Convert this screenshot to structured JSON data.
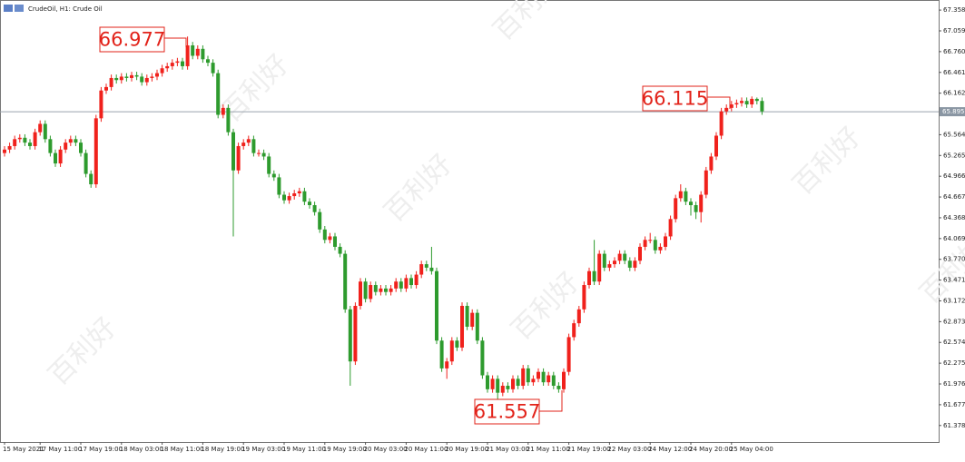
{
  "chart_data": {
    "type": "candlestick",
    "title": "CrudeOil, H1:  Crude Oil",
    "watermark": "百利好",
    "categories": [
      "15 May 2021",
      null,
      null,
      null,
      null,
      null,
      null,
      "17 May 11:00",
      null,
      null,
      null,
      null,
      null,
      null,
      null,
      "17 May 19:00",
      null,
      null,
      null,
      null,
      null,
      null,
      null,
      "18 May 03:00",
      null,
      null,
      null,
      null,
      null,
      null,
      null,
      "18 May 11:00",
      null,
      null,
      null,
      null,
      null,
      null,
      null,
      "18 May 19:00",
      null,
      null,
      null,
      null,
      null,
      null,
      null,
      "19 May 03:00",
      null,
      null,
      null,
      null,
      null,
      null,
      null,
      "19 May 11:00",
      null,
      null,
      null,
      null,
      null,
      null,
      null,
      "19 May 19:00",
      null,
      null,
      null,
      null,
      null,
      null,
      null,
      "20 May 03:00",
      null,
      null,
      null,
      null,
      null,
      null,
      null,
      "20 May 11:00",
      null,
      null,
      null,
      null,
      null,
      null,
      null,
      "20 May 19:00",
      null,
      null,
      null,
      null,
      null,
      null,
      null,
      "21 May 03:00",
      null,
      null,
      null,
      null,
      null,
      null,
      null,
      "21 May 11:00",
      null,
      null,
      null,
      null,
      null,
      null,
      null,
      "21 May 19:00",
      null,
      null,
      null,
      null,
      null,
      null,
      null,
      "22 May 03:00",
      null,
      null,
      null,
      null,
      null,
      null,
      null,
      "24 May 12:00",
      null,
      null,
      null,
      null,
      null,
      null,
      null,
      "24 May 20:00",
      null,
      null,
      null,
      null,
      null,
      null,
      null,
      "25 May 04:00",
      null,
      null,
      null,
      null,
      null,
      null
    ],
    "open": [
      65.3,
      65.35,
      65.4,
      65.5,
      65.52,
      65.45,
      65.4,
      65.6,
      65.72,
      65.5,
      65.3,
      65.15,
      65.35,
      65.45,
      65.5,
      65.45,
      65.3,
      65.0,
      64.85,
      65.8,
      66.2,
      66.25,
      66.38,
      66.35,
      66.4,
      66.38,
      66.42,
      66.4,
      66.32,
      66.38,
      66.4,
      66.45,
      66.52,
      66.55,
      66.6,
      66.62,
      66.55,
      66.85,
      66.7,
      66.8,
      66.65,
      66.6,
      66.45,
      65.85,
      65.95,
      65.6,
      65.05,
      65.4,
      65.45,
      65.5,
      65.3,
      65.3,
      65.25,
      65.0,
      64.95,
      64.7,
      64.62,
      64.68,
      64.72,
      64.75,
      64.6,
      64.55,
      64.45,
      64.2,
      64.05,
      64.1,
      63.95,
      63.85,
      63.05,
      62.3,
      63.1,
      63.45,
      63.2,
      63.4,
      63.3,
      63.35,
      63.3,
      63.35,
      63.45,
      63.35,
      63.5,
      63.4,
      63.55,
      63.7,
      63.65,
      63.6,
      62.6,
      62.2,
      62.3,
      62.6,
      62.5,
      63.1,
      62.8,
      63.0,
      62.6,
      62.1,
      61.9,
      62.05,
      61.85,
      61.95,
      61.9,
      62.05,
      61.95,
      62.2,
      62.0,
      62.05,
      62.15,
      62.0,
      62.1,
      61.95,
      61.9,
      62.15,
      62.65,
      62.85,
      63.05,
      63.4,
      63.6,
      63.45,
      63.85,
      63.65,
      63.7,
      63.75,
      63.85,
      63.75,
      63.65,
      63.75,
      63.95,
      64.05,
      64.05,
      63.9,
      63.95,
      64.1,
      64.35,
      64.65,
      64.75,
      64.6,
      64.55,
      64.45,
      64.7,
      65.05,
      65.25,
      65.55,
      65.9,
      65.95,
      66.0,
      66.02,
      66.05,
      66.0,
      66.08,
      66.05
    ],
    "high": [
      65.4,
      65.45,
      65.55,
      65.57,
      65.57,
      65.5,
      65.65,
      65.77,
      65.77,
      65.55,
      65.35,
      65.4,
      65.5,
      65.55,
      65.55,
      65.5,
      65.35,
      65.05,
      65.85,
      66.25,
      66.3,
      66.43,
      66.43,
      66.45,
      66.45,
      66.47,
      66.47,
      66.45,
      66.43,
      66.45,
      66.5,
      66.57,
      66.6,
      66.65,
      66.67,
      66.67,
      66.977,
      66.9,
      66.85,
      66.85,
      66.7,
      66.65,
      66.5,
      66.0,
      66.0,
      65.65,
      65.45,
      65.5,
      65.55,
      65.55,
      65.35,
      65.35,
      65.3,
      65.05,
      65.0,
      64.75,
      64.73,
      64.77,
      64.8,
      64.8,
      64.65,
      64.6,
      64.5,
      64.25,
      64.15,
      64.15,
      64.0,
      63.9,
      63.1,
      63.15,
      63.5,
      63.5,
      63.45,
      63.45,
      63.4,
      63.4,
      63.4,
      63.5,
      63.5,
      63.55,
      63.55,
      63.6,
      63.75,
      63.75,
      63.95,
      63.65,
      62.65,
      62.35,
      62.65,
      62.65,
      63.15,
      63.15,
      63.05,
      63.05,
      62.65,
      62.15,
      62.1,
      62.1,
      62.0,
      62.0,
      62.1,
      62.1,
      62.25,
      62.25,
      62.1,
      62.2,
      62.2,
      62.15,
      62.15,
      62.0,
      62.2,
      62.7,
      62.9,
      63.1,
      63.45,
      63.65,
      64.05,
      63.9,
      63.9,
      63.75,
      63.8,
      63.9,
      63.9,
      63.8,
      63.8,
      64.0,
      64.1,
      64.15,
      64.1,
      64.0,
      64.15,
      64.4,
      64.7,
      64.85,
      64.8,
      64.65,
      64.6,
      64.75,
      65.1,
      65.3,
      65.6,
      65.95,
      66.0,
      66.05,
      66.07,
      66.1,
      66.1,
      66.115,
      66.1,
      66.1
    ],
    "low": [
      65.25,
      65.3,
      65.35,
      65.45,
      65.4,
      65.35,
      65.35,
      65.55,
      65.45,
      65.25,
      65.1,
      65.1,
      65.3,
      65.4,
      65.4,
      65.25,
      64.95,
      64.8,
      64.8,
      65.75,
      66.15,
      66.2,
      66.3,
      66.3,
      66.33,
      66.33,
      66.35,
      66.27,
      66.27,
      66.33,
      66.35,
      66.4,
      66.47,
      66.5,
      66.55,
      66.5,
      66.5,
      66.65,
      66.65,
      66.6,
      66.55,
      66.4,
      65.8,
      65.8,
      65.55,
      64.1,
      65.0,
      65.35,
      65.4,
      65.25,
      65.25,
      65.2,
      64.95,
      64.9,
      64.65,
      64.57,
      64.57,
      64.63,
      64.67,
      64.55,
      64.5,
      64.4,
      64.15,
      64.0,
      64.0,
      63.9,
      63.8,
      63.0,
      61.95,
      62.25,
      63.05,
      63.15,
      63.15,
      63.25,
      63.25,
      63.25,
      63.25,
      63.3,
      63.3,
      63.3,
      63.35,
      63.35,
      63.5,
      63.6,
      63.55,
      62.55,
      62.15,
      62.05,
      62.25,
      62.45,
      62.45,
      62.75,
      62.75,
      62.55,
      62.05,
      61.85,
      61.85,
      61.557,
      61.8,
      61.85,
      61.85,
      61.9,
      61.9,
      61.95,
      61.95,
      62.0,
      61.95,
      61.95,
      61.9,
      61.85,
      61.85,
      62.1,
      62.6,
      62.8,
      63.0,
      63.35,
      63.4,
      63.4,
      63.6,
      63.6,
      63.65,
      63.7,
      63.7,
      63.6,
      63.6,
      63.7,
      63.9,
      64.0,
      63.85,
      63.85,
      63.9,
      64.05,
      64.3,
      64.6,
      64.55,
      64.4,
      64.35,
      64.3,
      64.65,
      65.0,
      65.2,
      65.5,
      65.85,
      65.9,
      65.95,
      65.97,
      65.95,
      65.95,
      66.0,
      65.85
    ],
    "close": [
      65.35,
      65.4,
      65.5,
      65.52,
      65.45,
      65.4,
      65.6,
      65.72,
      65.5,
      65.3,
      65.15,
      65.35,
      65.45,
      65.5,
      65.45,
      65.3,
      65.0,
      64.85,
      65.8,
      66.2,
      66.25,
      66.38,
      66.35,
      66.4,
      66.38,
      66.42,
      66.4,
      66.32,
      66.38,
      66.4,
      66.45,
      66.52,
      66.55,
      66.6,
      66.62,
      66.55,
      66.85,
      66.7,
      66.8,
      66.65,
      66.6,
      66.45,
      65.85,
      65.95,
      65.6,
      65.05,
      65.4,
      65.45,
      65.5,
      65.3,
      65.3,
      65.25,
      65.0,
      64.95,
      64.7,
      64.62,
      64.68,
      64.72,
      64.75,
      64.6,
      64.55,
      64.45,
      64.2,
      64.05,
      64.1,
      63.95,
      63.85,
      63.05,
      62.3,
      63.1,
      63.45,
      63.2,
      63.4,
      63.3,
      63.35,
      63.3,
      63.35,
      63.45,
      63.35,
      63.5,
      63.4,
      63.55,
      63.7,
      63.65,
      63.6,
      62.6,
      62.2,
      62.3,
      62.6,
      62.5,
      63.1,
      62.8,
      63.0,
      62.6,
      62.1,
      61.9,
      62.05,
      61.85,
      61.95,
      61.9,
      62.05,
      61.95,
      62.2,
      62.0,
      62.05,
      62.15,
      62.0,
      62.1,
      61.95,
      61.9,
      62.15,
      62.65,
      62.85,
      63.05,
      63.4,
      63.6,
      63.45,
      63.85,
      63.65,
      63.7,
      63.75,
      63.85,
      63.75,
      63.65,
      63.75,
      63.95,
      64.05,
      64.05,
      63.9,
      63.95,
      64.1,
      64.35,
      64.65,
      64.75,
      64.6,
      64.55,
      64.45,
      64.7,
      65.05,
      65.25,
      65.55,
      65.9,
      65.95,
      66.0,
      66.02,
      66.05,
      66.0,
      66.08,
      66.05,
      65.9
    ],
    "up_color": "#f0211c",
    "down_color": "#2e9b2e",
    "ylim": [
      61.14,
      67.49
    ],
    "yticks": [
      67.358,
      67.059,
      {
        "value": 66.76,
        "label": "66.760"
      },
      66.461,
      66.162,
      65.564,
      65.265,
      64.966,
      64.667,
      64.368,
      64.069,
      {
        "value": 63.77,
        "label": "63.770"
      },
      63.471,
      63.172,
      62.873,
      62.574,
      62.275,
      61.976,
      61.677,
      61.378
    ],
    "current_price": 65.895,
    "annotations": [
      "66.977",
      "66.115",
      "61.557"
    ]
  }
}
